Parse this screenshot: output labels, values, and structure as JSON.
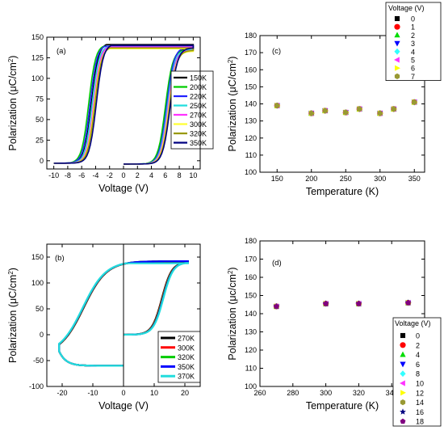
{
  "chart_data": [
    {
      "panel": "a",
      "type": "line",
      "panel_label": "(a)",
      "xlabel": "Voltage (V)",
      "ylabel": "Polarization (μC/cm²)",
      "xlim": [
        -11,
        11
      ],
      "ylim": [
        -10,
        150
      ],
      "xticks": [
        -10,
        -8,
        -6,
        -4,
        -2,
        0,
        2,
        4,
        6,
        8,
        10
      ],
      "yticks": [
        0,
        25,
        50,
        75,
        100,
        125,
        150
      ],
      "legend_position": "right",
      "series": [
        {
          "name": "150K",
          "color": "#000000",
          "vc": -4.6,
          "vc2": 6.1,
          "ps": 141,
          "pe": 135
        },
        {
          "name": "200K",
          "color": "#00cc00",
          "vc": -5.0,
          "vc2": 6.0,
          "ps": 139,
          "pe": 134
        },
        {
          "name": "220K",
          "color": "#2222ff",
          "vc": -4.8,
          "vc2": 6.2,
          "ps": 139,
          "pe": 137
        },
        {
          "name": "250K",
          "color": "#22dddd",
          "vc": -4.5,
          "vc2": 6.3,
          "ps": 138,
          "pe": 134
        },
        {
          "name": "270K",
          "color": "#ff33ff",
          "vc": -4.3,
          "vc2": 6.4,
          "ps": 138,
          "pe": 133
        },
        {
          "name": "300K",
          "color": "#ffff33",
          "vc": -4.2,
          "vc2": 6.5,
          "ps": 136,
          "pe": 132
        },
        {
          "name": "320K",
          "color": "#999900",
          "vc": -4.1,
          "vc2": 6.6,
          "ps": 137,
          "pe": 133
        },
        {
          "name": "350K",
          "color": "#000080",
          "vc": -3.9,
          "vc2": 6.7,
          "ps": 140,
          "pe": 136
        }
      ]
    },
    {
      "panel": "b",
      "type": "line",
      "panel_label": "(b)",
      "xlabel": "Voltage (V)",
      "ylabel": "Polarization (μC/cm²)",
      "xlim": [
        -25,
        25
      ],
      "ylim": [
        -100,
        175
      ],
      "xticks": [
        -20,
        -10,
        0,
        10,
        20
      ],
      "yticks": [
        -100,
        -50,
        0,
        50,
        100,
        150
      ],
      "legend_position": "lower-right",
      "series": [
        {
          "name": "270K",
          "color": "#000000",
          "ps": 142
        },
        {
          "name": "300K",
          "color": "#ff0000",
          "ps": 143
        },
        {
          "name": "320K",
          "color": "#00cc00",
          "ps": 144
        },
        {
          "name": "350K",
          "color": "#0000ff",
          "ps": 146
        },
        {
          "name": "370K",
          "color": "#22dddd",
          "ps": 139
        }
      ]
    },
    {
      "panel": "c",
      "type": "scatter",
      "panel_label": "(c)",
      "xlabel": "Temperature (K)",
      "ylabel": "Polarization (μC/cm²)",
      "xlim": [
        125,
        365
      ],
      "ylim": [
        100,
        180
      ],
      "xticks": [
        150,
        200,
        250,
        300,
        350
      ],
      "yticks": [
        100,
        110,
        120,
        130,
        140,
        150,
        160,
        170,
        180
      ],
      "legend_title": "Voltage (V)",
      "legend_position": "top-right, outside",
      "x": [
        150,
        200,
        220,
        250,
        270,
        300,
        320,
        350
      ],
      "y": [
        139,
        134.5,
        136,
        135,
        137,
        134.5,
        137,
        141
      ],
      "series": [
        {
          "name": "0",
          "color": "#000000",
          "marker": "square"
        },
        {
          "name": "1",
          "color": "#ff0000",
          "marker": "circle"
        },
        {
          "name": "2",
          "color": "#00dd00",
          "marker": "triangle-up"
        },
        {
          "name": "3",
          "color": "#0000ff",
          "marker": "triangle-down"
        },
        {
          "name": "4",
          "color": "#33ffff",
          "marker": "diamond"
        },
        {
          "name": "5",
          "color": "#ff33ff",
          "marker": "triangle-left"
        },
        {
          "name": "6",
          "color": "#ffff00",
          "marker": "triangle-right"
        },
        {
          "name": "7",
          "color": "#999933",
          "marker": "hexagon"
        }
      ]
    },
    {
      "panel": "d",
      "type": "scatter",
      "panel_label": "(d)",
      "xlabel": "Temperature (K)",
      "ylabel": "Polarization (μc/cm²)",
      "xlim": [
        260,
        360
      ],
      "ylim": [
        100,
        180
      ],
      "xticks": [
        260,
        280,
        300,
        320,
        340
      ],
      "yticks": [
        100,
        110,
        120,
        130,
        140,
        150,
        160,
        170,
        180
      ],
      "legend_title": "Voltage (V)",
      "legend_position": "bottom-right",
      "x": [
        270,
        300,
        320,
        350
      ],
      "y": [
        144,
        145.5,
        145.5,
        146
      ],
      "series": [
        {
          "name": "0",
          "color": "#000000",
          "marker": "square"
        },
        {
          "name": "2",
          "color": "#ff0000",
          "marker": "circle"
        },
        {
          "name": "4",
          "color": "#00dd00",
          "marker": "triangle-up"
        },
        {
          "name": "6",
          "color": "#0000ff",
          "marker": "triangle-down"
        },
        {
          "name": "8",
          "color": "#33ffff",
          "marker": "diamond"
        },
        {
          "name": "10",
          "color": "#ff33ff",
          "marker": "triangle-left"
        },
        {
          "name": "12",
          "color": "#ffff00",
          "marker": "triangle-right"
        },
        {
          "name": "14",
          "color": "#999933",
          "marker": "hexagon"
        },
        {
          "name": "16",
          "color": "#000080",
          "marker": "star"
        },
        {
          "name": "18",
          "color": "#800080",
          "marker": "pentagon"
        }
      ]
    }
  ]
}
